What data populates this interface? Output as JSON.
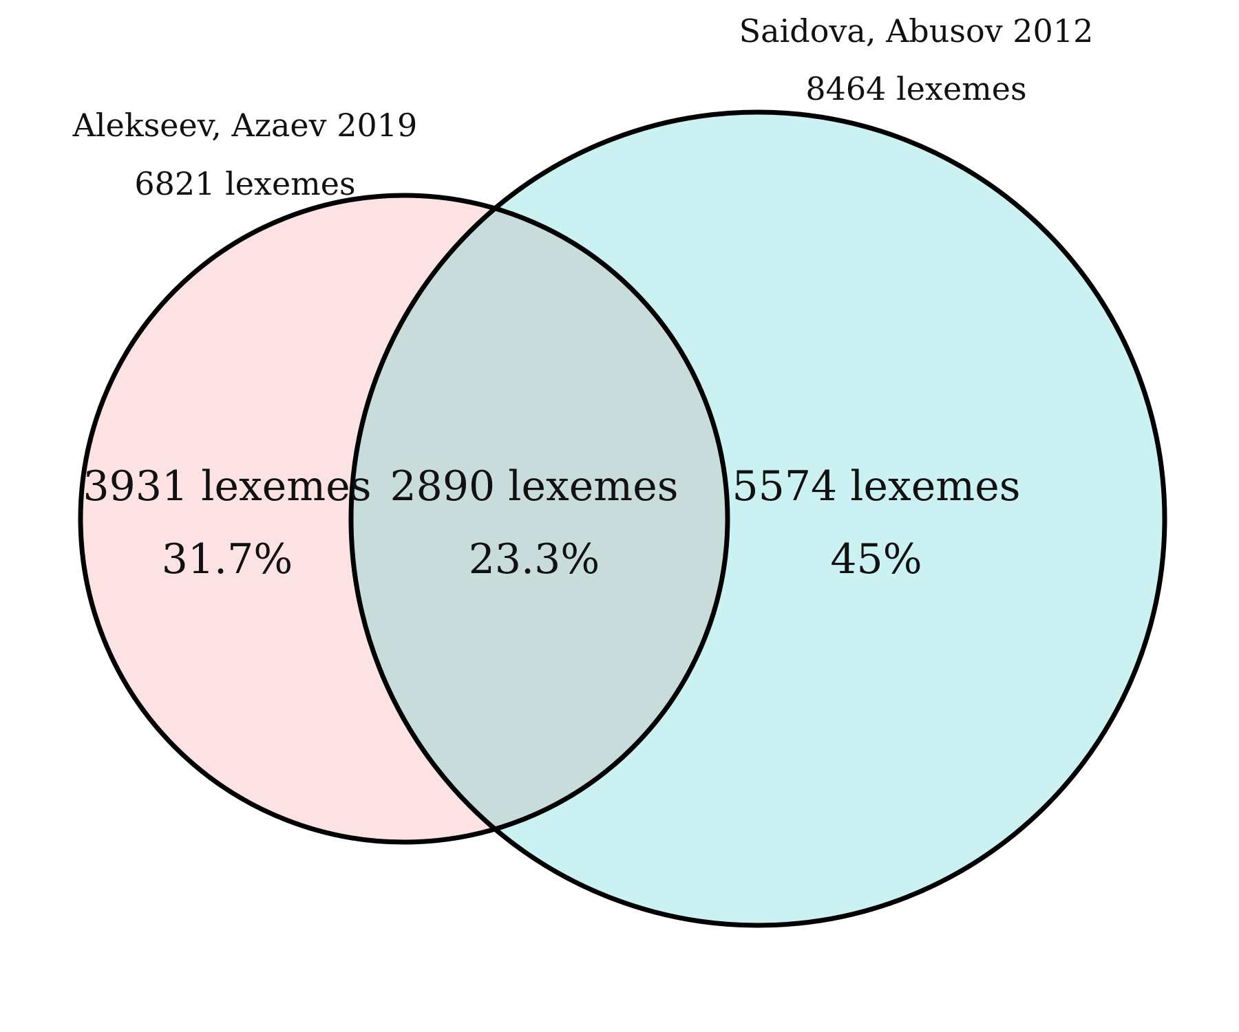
{
  "sets": [
    {
      "name": "Alekseev, Azaev 2019",
      "total": "6821 lexemes",
      "fill": "#fde2e3"
    },
    {
      "name": "Saidova, Abusov 2012",
      "total": "8464 lexemes",
      "fill": "#ccf1f3"
    }
  ],
  "regions": {
    "left_only": {
      "count": "3931 lexemes",
      "percent": "31.7%"
    },
    "overlap": {
      "count": "2890 lexemes",
      "percent": "23.3%",
      "fill": "#c8dcdc"
    },
    "right_only": {
      "count": "5574 lexemes",
      "percent": "45%"
    }
  },
  "outline_color": "#000000"
}
